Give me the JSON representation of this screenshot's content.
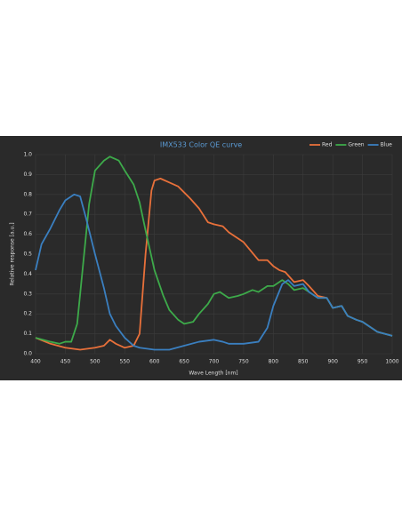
{
  "chart_data": {
    "type": "line",
    "title": "IMX533 Color QE curve",
    "x_label": "Wave Length [nm]",
    "y_label": "Relative response [a.u.]",
    "xlim": [
      400,
      1000
    ],
    "xticks": [
      400,
      450,
      500,
      550,
      600,
      650,
      700,
      750,
      800,
      850,
      900,
      950,
      1000
    ],
    "ylim": [
      0,
      1
    ],
    "yticks": [
      {
        "value": 0,
        "label": "0.0"
      },
      0.1,
      0.2,
      0.3,
      0.4,
      0.5,
      0.6,
      0.7,
      0.8,
      0.9,
      {
        "value": 1,
        "label": "1.0"
      }
    ],
    "grid": true,
    "legend": "top-right",
    "series": [
      {
        "name": "Red",
        "color": "#e8703a",
        "x": [
          400,
          425,
          450,
          475,
          500,
          515,
          525,
          535,
          550,
          565,
          575,
          585,
          595,
          600,
          610,
          625,
          640,
          650,
          660,
          675,
          690,
          700,
          715,
          725,
          750,
          775,
          790,
          800,
          810,
          820,
          835,
          850,
          860,
          875,
          890,
          900,
          915,
          925,
          940,
          950,
          965,
          975,
          1000
        ],
        "values": [
          0.08,
          0.05,
          0.03,
          0.02,
          0.03,
          0.04,
          0.07,
          0.05,
          0.03,
          0.04,
          0.1,
          0.5,
          0.82,
          0.87,
          0.88,
          0.86,
          0.84,
          0.81,
          0.78,
          0.73,
          0.66,
          0.65,
          0.64,
          0.61,
          0.56,
          0.47,
          0.47,
          0.44,
          0.42,
          0.41,
          0.36,
          0.37,
          0.34,
          0.29,
          0.28,
          0.23,
          0.24,
          0.19,
          0.17,
          0.16,
          0.13,
          0.11,
          0.09
        ]
      },
      {
        "name": "Green",
        "color": "#3daa4a",
        "x": [
          400,
          425,
          440,
          450,
          460,
          470,
          480,
          490,
          500,
          515,
          525,
          540,
          550,
          565,
          575,
          585,
          600,
          615,
          625,
          640,
          650,
          665,
          675,
          690,
          700,
          710,
          725,
          740,
          750,
          765,
          775,
          790,
          800,
          815,
          825,
          835,
          850,
          860,
          875,
          890,
          900,
          915,
          925,
          940,
          950,
          965,
          975,
          1000
        ],
        "values": [
          0.08,
          0.06,
          0.05,
          0.06,
          0.06,
          0.15,
          0.45,
          0.75,
          0.92,
          0.97,
          0.99,
          0.97,
          0.92,
          0.85,
          0.76,
          0.62,
          0.42,
          0.29,
          0.22,
          0.17,
          0.15,
          0.16,
          0.2,
          0.25,
          0.3,
          0.31,
          0.28,
          0.29,
          0.3,
          0.32,
          0.31,
          0.34,
          0.34,
          0.37,
          0.35,
          0.32,
          0.33,
          0.31,
          0.28,
          0.28,
          0.23,
          0.24,
          0.19,
          0.17,
          0.16,
          0.13,
          0.11,
          0.09
        ]
      },
      {
        "name": "Blue",
        "color": "#3a7fc0",
        "x": [
          400,
          410,
          425,
          440,
          450,
          465,
          475,
          485,
          500,
          515,
          525,
          535,
          550,
          565,
          575,
          600,
          625,
          650,
          675,
          700,
          715,
          725,
          750,
          775,
          790,
          800,
          815,
          825,
          835,
          850,
          860,
          875,
          890,
          900,
          915,
          925,
          940,
          950,
          965,
          975,
          1000
        ],
        "values": [
          0.42,
          0.55,
          0.63,
          0.72,
          0.77,
          0.8,
          0.79,
          0.68,
          0.5,
          0.33,
          0.2,
          0.14,
          0.08,
          0.04,
          0.03,
          0.02,
          0.02,
          0.04,
          0.06,
          0.07,
          0.06,
          0.05,
          0.05,
          0.06,
          0.13,
          0.24,
          0.35,
          0.37,
          0.34,
          0.35,
          0.31,
          0.28,
          0.28,
          0.23,
          0.24,
          0.19,
          0.17,
          0.16,
          0.13,
          0.11,
          0.09
        ]
      }
    ]
  }
}
